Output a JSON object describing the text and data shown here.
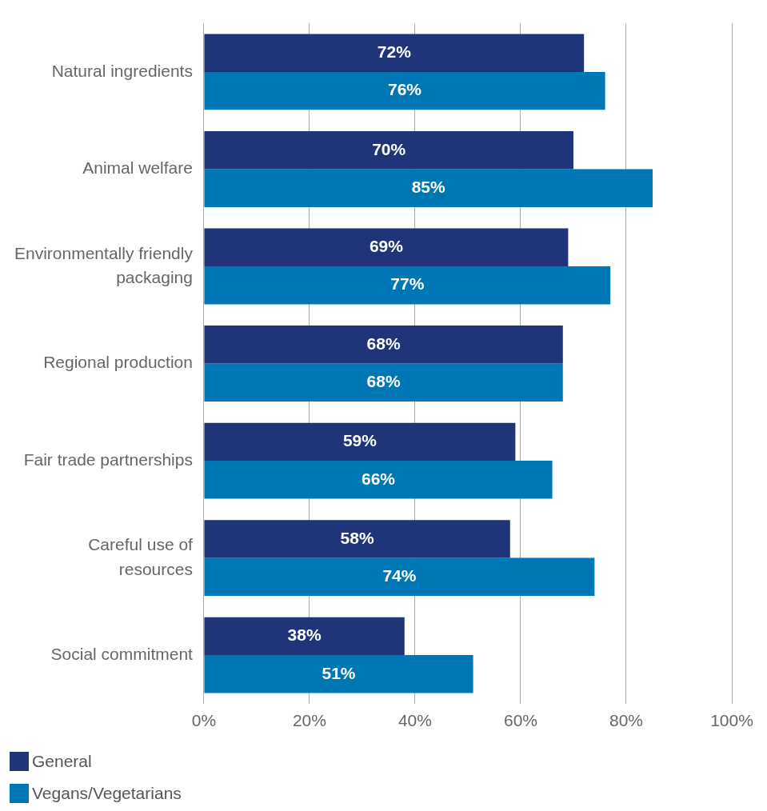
{
  "chart_data": {
    "type": "bar",
    "orientation": "horizontal",
    "categories": [
      "Natural ingredients",
      "Animal welfare",
      "Environmentally friendly packaging",
      "Regional production",
      "Fair trade partnerships",
      "Careful use of resources",
      "Social commitment"
    ],
    "series": [
      {
        "name": "General",
        "color": "#1f3479",
        "values": [
          72,
          70,
          69,
          68,
          59,
          58,
          38
        ],
        "value_labels": [
          "72%",
          "70%",
          "69%",
          "68%",
          "59%",
          "58%",
          "38%"
        ]
      },
      {
        "name": "Vegans/Vegetarians",
        "color": "#0077b5",
        "values": [
          76,
          85,
          77,
          68,
          66,
          74,
          51
        ],
        "value_labels": [
          "76%",
          "85%",
          "77%",
          "68%",
          "66%",
          "74%",
          "51%"
        ]
      }
    ],
    "xlim": [
      0,
      100
    ],
    "xticks": [
      {
        "value": 0,
        "label": "0%"
      },
      {
        "value": 20,
        "label": "20%"
      },
      {
        "value": 40,
        "label": "40%"
      },
      {
        "value": 60,
        "label": "60%"
      },
      {
        "value": 80,
        "label": "80%"
      },
      {
        "value": 100,
        "label": "100%"
      }
    ],
    "grid": "x",
    "legend": "bottom left"
  }
}
